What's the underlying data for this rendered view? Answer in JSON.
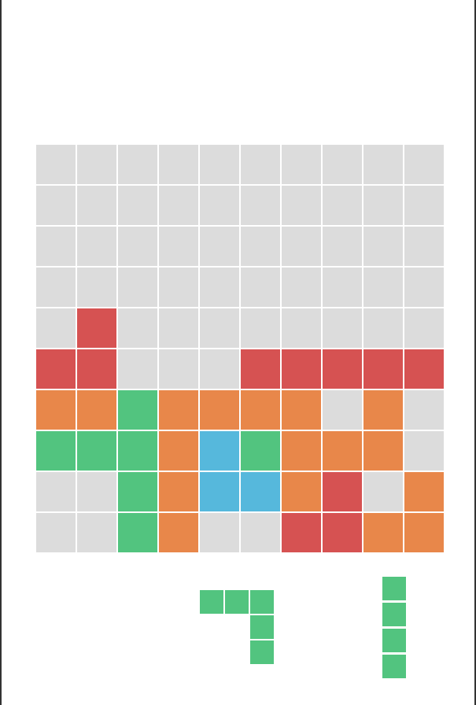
{
  "colors": {
    "E": "#dcdcdc",
    "R": "#d65252",
    "O": "#e8874a",
    "G": "#52c47f",
    "B": "#56b8dc"
  },
  "board": {
    "rows": [
      [
        "E",
        "E",
        "E",
        "E",
        "E",
        "E",
        "E",
        "E",
        "E",
        "E"
      ],
      [
        "E",
        "E",
        "E",
        "E",
        "E",
        "E",
        "E",
        "E",
        "E",
        "E"
      ],
      [
        "E",
        "E",
        "E",
        "E",
        "E",
        "E",
        "E",
        "E",
        "E",
        "E"
      ],
      [
        "E",
        "E",
        "E",
        "E",
        "E",
        "E",
        "E",
        "E",
        "E",
        "E"
      ],
      [
        "E",
        "R",
        "E",
        "E",
        "E",
        "E",
        "E",
        "E",
        "E",
        "E"
      ],
      [
        "R",
        "R",
        "E",
        "E",
        "E",
        "R",
        "R",
        "R",
        "R",
        "R"
      ],
      [
        "O",
        "O",
        "G",
        "O",
        "O",
        "O",
        "O",
        "E",
        "O",
        "E"
      ],
      [
        "G",
        "G",
        "G",
        "O",
        "B",
        "G",
        "O",
        "O",
        "O",
        "E"
      ],
      [
        "E",
        "E",
        "G",
        "O",
        "B",
        "B",
        "O",
        "R",
        "E",
        "O"
      ],
      [
        "E",
        "E",
        "G",
        "O",
        "E",
        "E",
        "R",
        "R",
        "O",
        "O"
      ]
    ]
  },
  "tray": [
    {
      "name": "tray-piece-1",
      "color": "G",
      "cells": [
        [
          0,
          0
        ],
        [
          1,
          0
        ],
        [
          2,
          0
        ],
        [
          2,
          1
        ],
        [
          2,
          2
        ]
      ]
    },
    {
      "name": "tray-piece-2",
      "color": "G",
      "cells": [
        [
          0,
          0
        ],
        [
          0,
          1
        ],
        [
          0,
          2
        ],
        [
          0,
          3
        ]
      ]
    }
  ]
}
